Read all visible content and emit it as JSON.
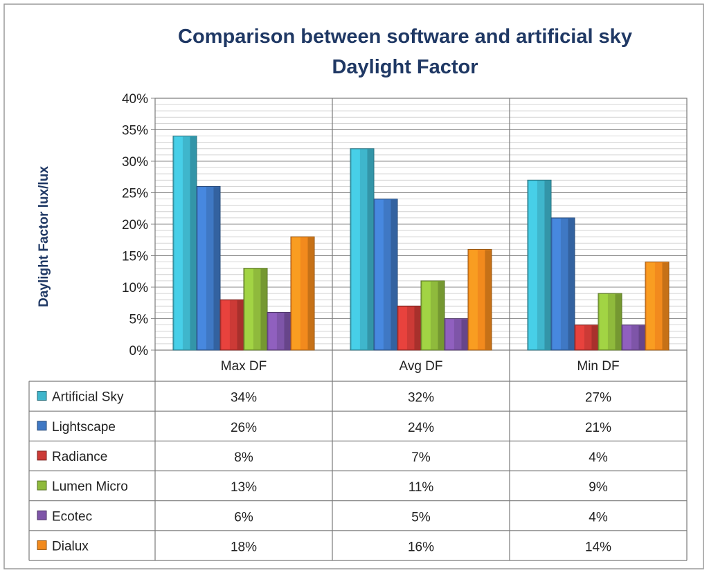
{
  "chart_data": {
    "type": "bar",
    "title": "Comparison between software and artificial sky",
    "subtitle": "Daylight Factor",
    "ylabel": "Daylight Factor lux/lux",
    "xlabel": "",
    "categories": [
      "Max DF",
      "Avg DF",
      "Min DF"
    ],
    "ylim": [
      0,
      40
    ],
    "yticks": [
      0,
      5,
      10,
      15,
      20,
      25,
      30,
      35,
      40
    ],
    "ytick_labels": [
      "0%",
      "5%",
      "10%",
      "15%",
      "20%",
      "25%",
      "30%",
      "35%",
      "40%"
    ],
    "grid": true,
    "legend": "data-table-below",
    "series": [
      {
        "name": "Artificial Sky",
        "values": [
          34,
          32,
          27
        ],
        "labels": [
          "34%",
          "32%",
          "27%"
        ],
        "color": "#3fb6cc"
      },
      {
        "name": "Lightscape",
        "values": [
          26,
          24,
          21
        ],
        "labels": [
          "26%",
          "24%",
          "21%"
        ],
        "color": "#3f78c4"
      },
      {
        "name": "Radiance",
        "values": [
          8,
          7,
          4
        ],
        "labels": [
          "8%",
          "7%",
          "4%"
        ],
        "color": "#cc3a36"
      },
      {
        "name": "Lumen Micro",
        "values": [
          13,
          11,
          9
        ],
        "labels": [
          "13%",
          "11%",
          "9%"
        ],
        "color": "#8fba3c"
      },
      {
        "name": "Ecotec",
        "values": [
          6,
          5,
          4
        ],
        "labels": [
          "6%",
          "5%",
          "4%"
        ],
        "color": "#7e55a8"
      },
      {
        "name": "Dialux",
        "values": [
          18,
          16,
          14
        ],
        "labels": [
          "18%",
          "16%",
          "14%"
        ],
        "color": "#f28a1d"
      }
    ]
  }
}
